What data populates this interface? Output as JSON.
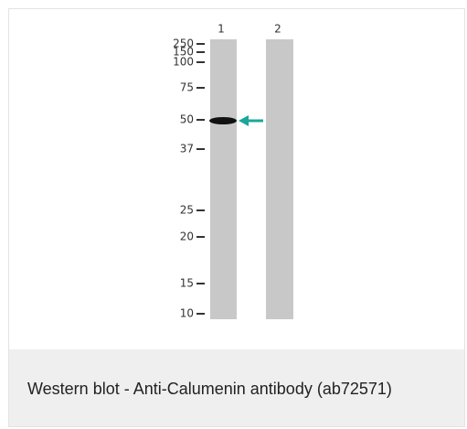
{
  "image": {
    "lanes": [
      "1",
      "2"
    ],
    "markers": [
      "250",
      "150",
      "100",
      "75",
      "50",
      "37",
      "25",
      "20",
      "15",
      "10"
    ]
  },
  "caption": "Western blot - Anti-Calumenin antibody (ab72571)"
}
